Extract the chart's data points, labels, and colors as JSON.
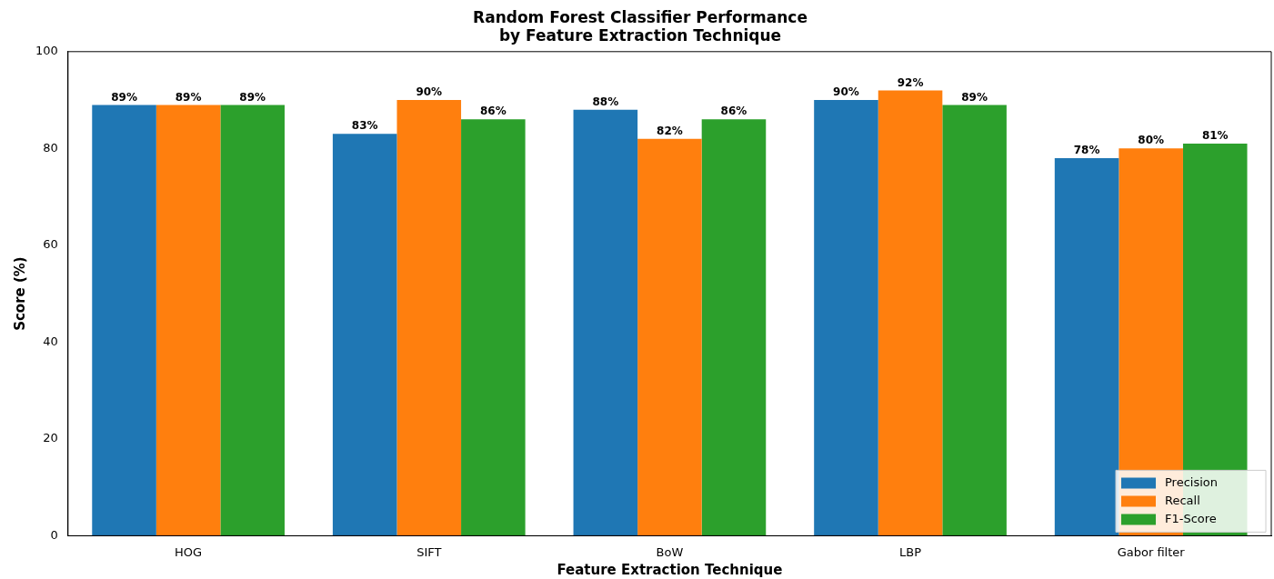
{
  "chart_data": {
    "type": "bar",
    "title": "Random Forest Classifier Performance\nby Feature Extraction Technique",
    "xlabel": "Feature Extraction Technique",
    "ylabel": "Score (%)",
    "categories": [
      "HOG",
      "SIFT",
      "BoW",
      "LBP",
      "Gabor filter"
    ],
    "series": [
      {
        "name": "Precision",
        "color": "#1f77b4",
        "values": [
          89,
          83,
          88,
          90,
          78
        ],
        "value_labels": [
          "89%",
          "83%",
          "88%",
          "90%",
          "78%"
        ]
      },
      {
        "name": "Recall",
        "color": "#ff7f0e",
        "values": [
          89,
          90,
          82,
          92,
          80
        ],
        "value_labels": [
          "89%",
          "90%",
          "82%",
          "92%",
          "80%"
        ]
      },
      {
        "name": "F1-Score",
        "color": "#2ca02c",
        "values": [
          89,
          86,
          86,
          89,
          81
        ],
        "value_labels": [
          "89%",
          "86%",
          "86%",
          "89%",
          "81%"
        ]
      }
    ],
    "ylim": [
      0,
      100
    ],
    "yticks": [
      0,
      20,
      40,
      60,
      80,
      100
    ],
    "grid": false,
    "legend": "bottom right"
  }
}
